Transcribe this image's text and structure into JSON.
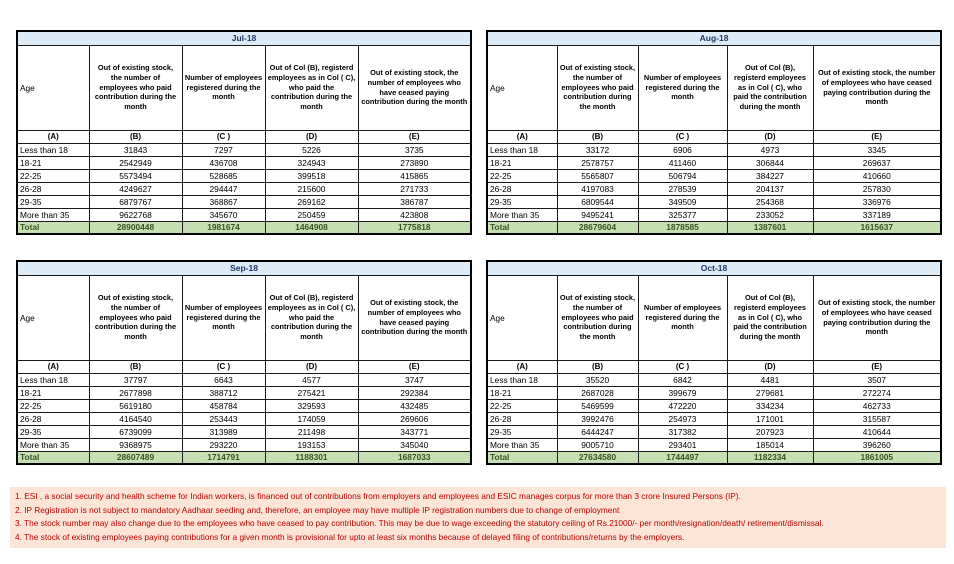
{
  "colors": {
    "title_bar_bg": "#DDEBF7",
    "title_text": "#1F3864",
    "total_row_bg": "#C6E0B4",
    "total_text": "#375623",
    "footnote_bg": "#FCE4D6",
    "footnote_text": "#C00000",
    "border": "#000000"
  },
  "column_headers": {
    "a": "Age",
    "b": "Out of existing stock, the number of employees who paid contribution during the month",
    "c": "Number of employees registered during the month",
    "d": "Out of Col (B), registerd employees as in Col ( C), who paid the contribution during the month",
    "e": "Out of existing stock, the number of  employees who have ceased paying contribution during the month"
  },
  "column_letters": {
    "a": "(A)",
    "b": "(B)",
    "c": "(C )",
    "d": "(D)",
    "e": "(E)"
  },
  "months": [
    {
      "title": "Jul-18",
      "rows": [
        {
          "age": "Less than 18",
          "b": "31843",
          "c": "7297",
          "d": "5226",
          "e": "3735"
        },
        {
          "age": "18-21",
          "b": "2542949",
          "c": "436708",
          "d": "324943",
          "e": "273890"
        },
        {
          "age": "22-25",
          "b": "5573494",
          "c": "528685",
          "d": "399518",
          "e": "415865"
        },
        {
          "age": "26-28",
          "b": "4249627",
          "c": "294447",
          "d": "215600",
          "e": "271733"
        },
        {
          "age": "29-35",
          "b": "6879767",
          "c": "368867",
          "d": "269162",
          "e": "386787"
        },
        {
          "age": "More than 35",
          "b": "9622768",
          "c": "345670",
          "d": "250459",
          "e": "423808"
        }
      ],
      "total": {
        "label": "Total",
        "b": "28900448",
        "c": "1981674",
        "d": "1464908",
        "e": "1775818"
      }
    },
    {
      "title": "Aug-18",
      "rows": [
        {
          "age": "Less than 18",
          "b": "33172",
          "c": "6906",
          "d": "4973",
          "e": "3345"
        },
        {
          "age": "18-21",
          "b": "2578757",
          "c": "411460",
          "d": "306844",
          "e": "269637"
        },
        {
          "age": "22-25",
          "b": "5565807",
          "c": "506794",
          "d": "384227",
          "e": "410660"
        },
        {
          "age": "26-28",
          "b": "4197083",
          "c": "278539",
          "d": "204137",
          "e": "257830"
        },
        {
          "age": "29-35",
          "b": "6809544",
          "c": "349509",
          "d": "254368",
          "e": "336976"
        },
        {
          "age": "More than 35",
          "b": "9495241",
          "c": "325377",
          "d": "233052",
          "e": "337189"
        }
      ],
      "total": {
        "label": "Total",
        "b": "28679604",
        "c": "1878585",
        "d": "1387601",
        "e": "1615637"
      }
    },
    {
      "title": "Sep-18",
      "rows": [
        {
          "age": "Less than 18",
          "b": "37797",
          "c": "6643",
          "d": "4577",
          "e": "3747"
        },
        {
          "age": "18-21",
          "b": "2677898",
          "c": "388712",
          "d": "275421",
          "e": "292384"
        },
        {
          "age": "22-25",
          "b": "5619180",
          "c": "458784",
          "d": "329593",
          "e": "432485"
        },
        {
          "age": "26-28",
          "b": "4164540",
          "c": "253443",
          "d": "174059",
          "e": "269606"
        },
        {
          "age": "29-35",
          "b": "6739099",
          "c": "313989",
          "d": "211498",
          "e": "343771"
        },
        {
          "age": "More than 35",
          "b": "9368975",
          "c": "293220",
          "d": "193153",
          "e": "345040"
        }
      ],
      "total": {
        "label": "Total",
        "b": "28607489",
        "c": "1714791",
        "d": "1188301",
        "e": "1687033"
      }
    },
    {
      "title": "Oct-18",
      "rows": [
        {
          "age": "Less than 18",
          "b": "35520",
          "c": "6842",
          "d": "4481",
          "e": "3507"
        },
        {
          "age": "18-21",
          "b": "2687028",
          "c": "399679",
          "d": "279681",
          "e": "272274"
        },
        {
          "age": "22-25",
          "b": "5469599",
          "c": "472220",
          "d": "334234",
          "e": "462733"
        },
        {
          "age": "26-28",
          "b": "3992476",
          "c": "254973",
          "d": "171001",
          "e": "315587"
        },
        {
          "age": "29-35",
          "b": "6444247",
          "c": "317382",
          "d": "207923",
          "e": "410644"
        },
        {
          "age": "More than 35",
          "b": "9005710",
          "c": "293401",
          "d": "185014",
          "e": "396260"
        }
      ],
      "total": {
        "label": "Total",
        "b": "27634580",
        "c": "1744497",
        "d": "1182334",
        "e": "1861005"
      }
    }
  ],
  "footnotes": [
    "1. ESI , a social security and health scheme for Indian workers, is financed out of contributions from employers and employees and ESIC manages corpus for more than 3 crore Insured Persons (IP).",
    "2. IP Registration is not subject to mandatory Aadhaar seeding and, therefore, an employee may have multiple IP registration numbers due to change of employment",
    "3. The stock number may also change due to the employees who have ceased to pay contribution. This may  be due to wage exceeding the statutory ceiling of  Rs.21000/- per month/resignation/death/ retirement/dismissal.",
    "4. The stock of existing employees paying contributions for a given month is provisional for upto at least six months because of delayed filing of contributions/returns by the employers."
  ]
}
